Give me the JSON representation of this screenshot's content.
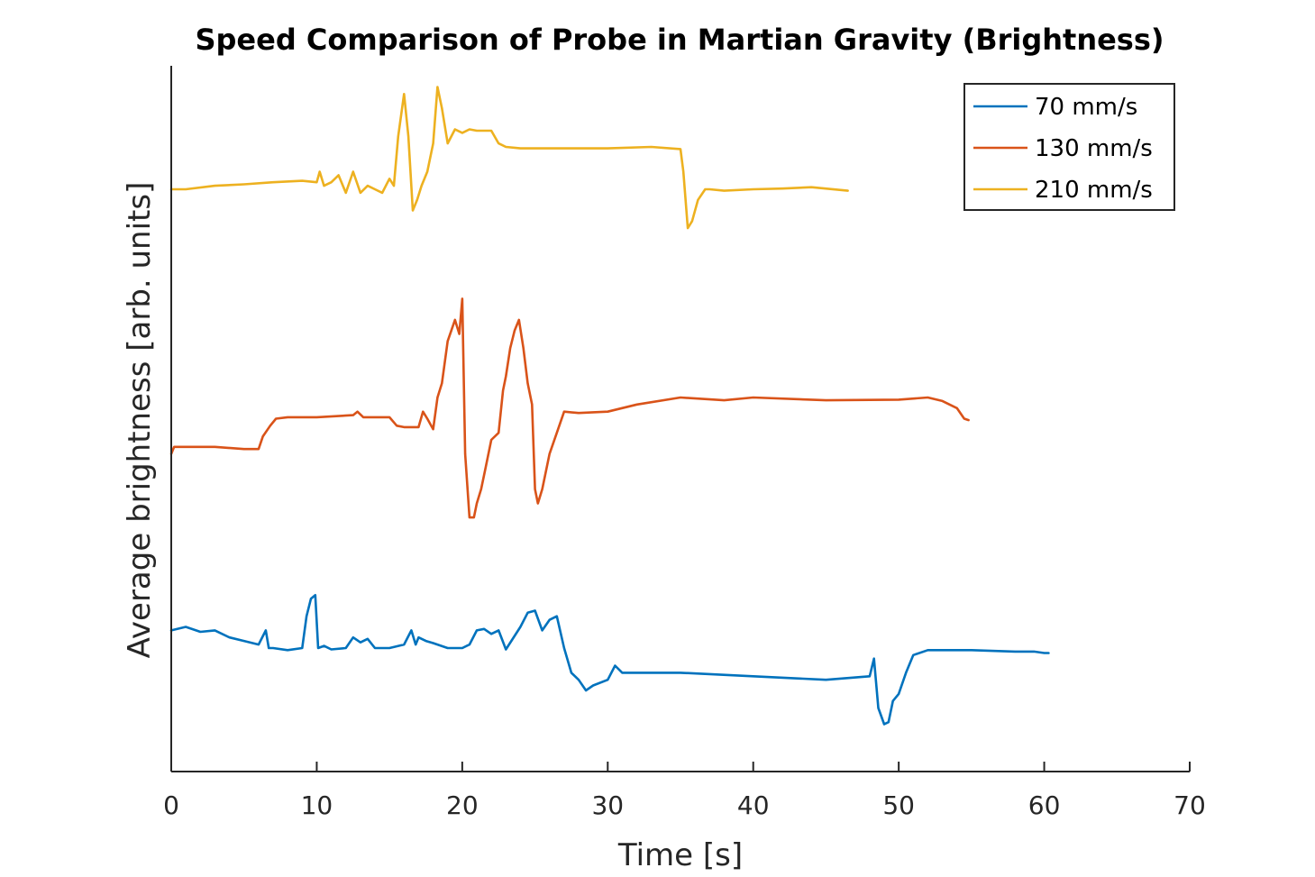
{
  "chart_data": {
    "type": "line",
    "title": "Speed Comparison of Probe in Martian Gravity (Brightness)",
    "xlabel": "Time [s]",
    "ylabel": "Average brightness [arb. units]",
    "xlim": [
      0,
      70
    ],
    "ylim": [
      0,
      100
    ],
    "xticks": [
      "0",
      "10",
      "20",
      "30",
      "40",
      "50",
      "60",
      "70"
    ],
    "yticks_shown": false,
    "grid": false,
    "legend_position": "top-right",
    "series": [
      {
        "name": "70 mm/s",
        "color": "#0072BD",
        "x": [
          0,
          1,
          2,
          3,
          4,
          5,
          6,
          6.5,
          6.7,
          7,
          8,
          9,
          9.3,
          9.6,
          9.9,
          10.1,
          10.5,
          11,
          12,
          12.5,
          13,
          13.5,
          14,
          15,
          16,
          16.5,
          16.8,
          17,
          17.5,
          18,
          19,
          20,
          20.5,
          21,
          21.5,
          22,
          22.5,
          23,
          24,
          24.5,
          25,
          25.5,
          26,
          26.5,
          27,
          27.5,
          28,
          28.5,
          29,
          30,
          30.5,
          31,
          35,
          40,
          45,
          48,
          48.3,
          48.6,
          49,
          49.3,
          49.6,
          50,
          50.5,
          51,
          52,
          55,
          58,
          59.3,
          60,
          60.3
        ],
        "y": [
          20,
          20.5,
          19.8,
          20,
          19,
          18.5,
          18,
          20,
          17.5,
          17.5,
          17.2,
          17.5,
          22,
          24.5,
          25,
          17.5,
          17.8,
          17.3,
          17.5,
          19,
          18.3,
          18.8,
          17.5,
          17.5,
          18,
          20,
          18,
          19,
          18.5,
          18.2,
          17.5,
          17.5,
          18,
          20,
          20.2,
          19.5,
          20,
          17.3,
          20.5,
          22.5,
          22.8,
          20,
          21.5,
          22,
          17.5,
          14,
          13,
          11.5,
          12.2,
          13,
          15,
          14,
          14,
          13.5,
          13,
          13.5,
          16,
          9,
          6.7,
          7,
          10,
          11,
          14,
          16.5,
          17.2,
          17.2,
          17,
          17,
          16.8,
          16.8
        ]
      },
      {
        "name": "130 mm/s",
        "color": "#D95319",
        "x": [
          0,
          0.2,
          1,
          3,
          5,
          6,
          6.3,
          6.8,
          7.2,
          8,
          10,
          12.5,
          12.8,
          13.2,
          14,
          15,
          15.5,
          16,
          17,
          17.3,
          17.6,
          18,
          18.3,
          18.6,
          19,
          19.5,
          19.8,
          20,
          20.2,
          20.5,
          20.8,
          21,
          21.3,
          21.6,
          22,
          22.5,
          22.8,
          23,
          23.3,
          23.6,
          23.9,
          24.2,
          24.5,
          24.8,
          25,
          25.2,
          25.5,
          26,
          26.5,
          27,
          28,
          30,
          32,
          35,
          38,
          40,
          45,
          50,
          52,
          53,
          54,
          54.5,
          54.8
        ],
        "y": [
          45,
          46,
          46,
          46,
          45.7,
          45.7,
          47.5,
          49,
          50,
          50.2,
          50.2,
          50.5,
          51,
          50.2,
          50.2,
          50.2,
          49,
          48.8,
          48.8,
          51,
          50,
          48.5,
          53,
          55,
          61,
          64,
          62,
          67,
          45,
          36,
          36,
          38,
          40,
          43,
          47,
          48,
          54,
          56,
          60,
          62.5,
          64,
          60,
          55,
          52,
          40,
          38,
          40,
          45,
          48,
          51,
          50.8,
          51,
          52,
          53,
          52.6,
          53,
          52.6,
          52.7,
          53,
          52.5,
          51.5,
          50,
          49.8
        ]
      },
      {
        "name": "210 mm/s",
        "color": "#EDB120",
        "x": [
          0,
          1,
          3,
          5,
          7,
          9,
          10,
          10.2,
          10.5,
          11,
          11.5,
          12,
          12.5,
          13,
          13.5,
          14,
          14.5,
          15,
          15.3,
          15.6,
          16,
          16.3,
          16.6,
          16.9,
          17.2,
          17.6,
          18,
          18.3,
          18.6,
          19,
          19.5,
          20,
          20.5,
          21,
          22,
          22.5,
          23,
          24,
          26,
          30,
          33,
          35,
          35.2,
          35.5,
          35.8,
          36.2,
          36.7,
          37,
          38,
          40,
          42,
          44,
          46.5
        ],
        "y": [
          82.5,
          82.5,
          83,
          83.2,
          83.5,
          83.7,
          83.5,
          85,
          83,
          83.5,
          84.5,
          82,
          85,
          82,
          83,
          82.5,
          82,
          84,
          83,
          90,
          96,
          90,
          79.5,
          81,
          83,
          85,
          89,
          97,
          94,
          89,
          91,
          90.5,
          91,
          90.8,
          90.8,
          89,
          88.5,
          88.3,
          88.3,
          88.3,
          88.5,
          88.2,
          85,
          77,
          78,
          81,
          82.5,
          82.5,
          82.3,
          82.5,
          82.6,
          82.8,
          82.3
        ]
      }
    ]
  }
}
